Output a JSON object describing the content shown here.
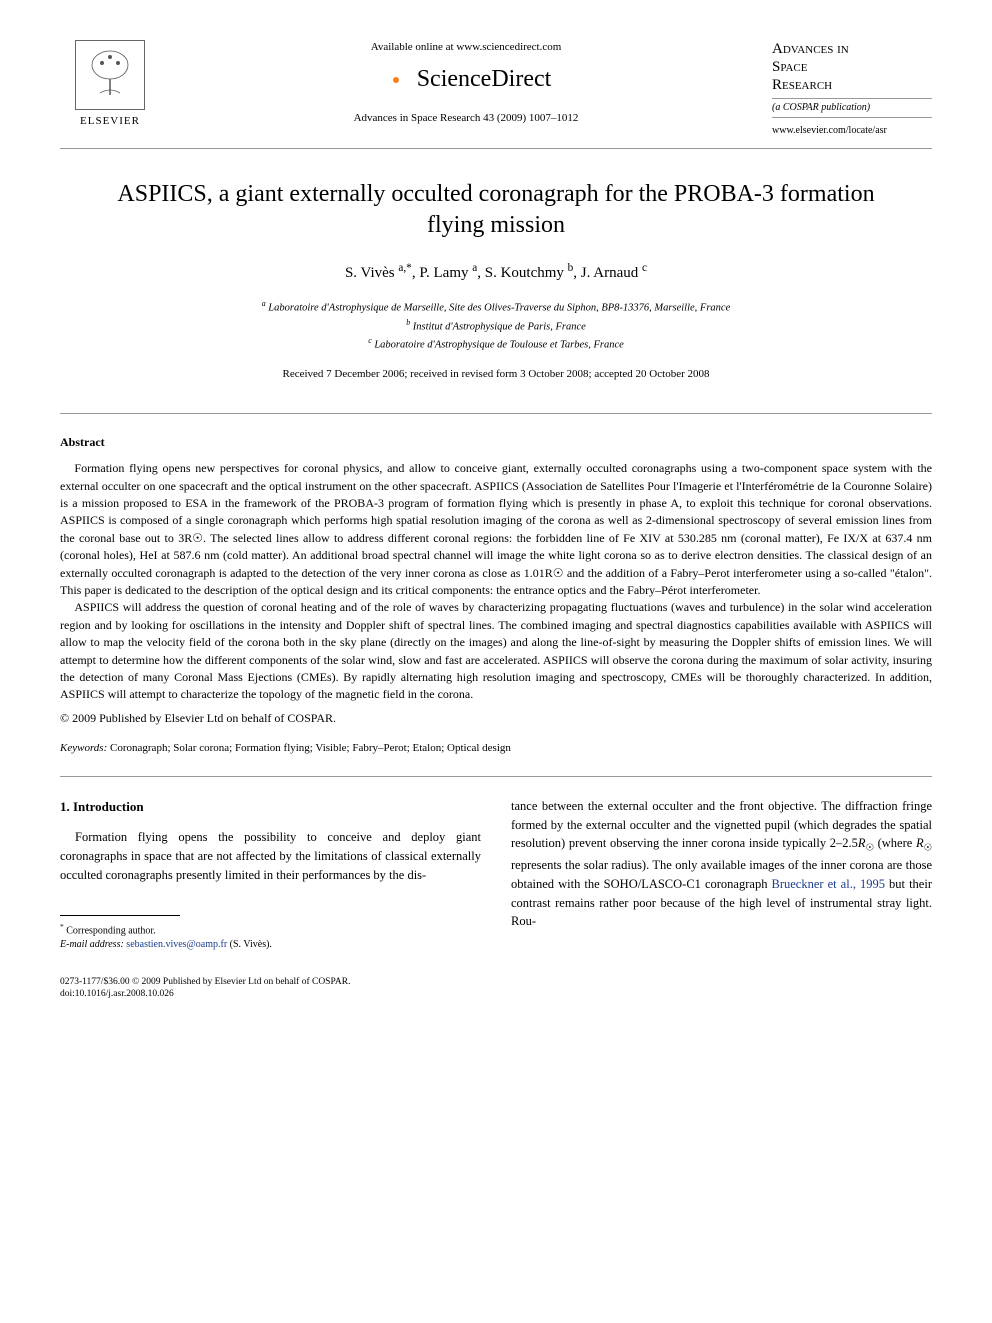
{
  "header": {
    "elsevier_label": "ELSEVIER",
    "available_text": "Available online at www.sciencedirect.com",
    "sciencedirect_label": "ScienceDirect",
    "journal_ref": "Advances in Space Research 43 (2009) 1007–1012",
    "journal_title_l1": "Advances in",
    "journal_title_l2": "Space",
    "journal_title_l3": "Research",
    "journal_sub": "(a COSPAR publication)",
    "journal_url": "www.elsevier.com/locate/asr",
    "sd_colors": [
      "#f58220",
      "#7cb342",
      "#29b6f6",
      "#ffca28"
    ]
  },
  "title": "ASPIICS, a giant externally occulted coronagraph for the PROBA-3 formation flying mission",
  "authors_html": "S. Vivès <span class='sup'>a,*</span>, P. Lamy <span class='sup'>a</span>, S. Koutchmy <span class='sup'>b</span>, J. Arnaud <span class='sup'>c</span>",
  "affiliations": {
    "a": "Laboratoire d'Astrophysique de Marseille, Site des Olives-Traverse du Siphon, BP8-13376, Marseille, France",
    "b": "Institut d'Astrophysique de Paris, France",
    "c": "Laboratoire d'Astrophysique de Toulouse et Tarbes, France"
  },
  "dates": "Received 7 December 2006; received in revised form 3 October 2008; accepted 20 October 2008",
  "abstract_label": "Abstract",
  "abstract": {
    "p1": "Formation flying opens new perspectives for coronal physics, and allow to conceive giant, externally occulted coronagraphs using a two-component space system with the external occulter on one spacecraft and the optical instrument on the other spacecraft. ASPIICS (Association de Satellites Pour l'Imagerie et l'Interférométrie de la Couronne Solaire) is a mission proposed to ESA in the framework of the PROBA-3 program of formation flying which is presently in phase A, to exploit this technique for coronal observations. ASPIICS is composed of a single coronagraph which performs high spatial resolution imaging of the corona as well as 2-dimensional spectroscopy of several emission lines from the coronal base out to 3R☉. The selected lines allow to address different coronal regions: the forbidden line of Fe XIV at 530.285 nm (coronal matter), Fe IX/X at 637.4 nm (coronal holes), HeI at 587.6 nm (cold matter). An additional broad spectral channel will image the white light corona so as to derive electron densities. The classical design of an externally occulted coronagraph is adapted to the detection of the very inner corona as close as 1.01R☉ and the addition of a Fabry–Perot interferometer using a so-called \"étalon\". This paper is dedicated to the description of the optical design and its critical components: the entrance optics and the Fabry–Pérot interferometer.",
    "p2": "ASPIICS will address the question of coronal heating and of the role of waves by characterizing propagating fluctuations (waves and turbulence) in the solar wind acceleration region and by looking for oscillations in the intensity and Doppler shift of spectral lines. The combined imaging and spectral diagnostics capabilities available with ASPIICS will allow to map the velocity field of the corona both in the sky plane (directly on the images) and along the line-of-sight by measuring the Doppler shifts of emission lines. We will attempt to determine how the different components of the solar wind, slow and fast are accelerated. ASPIICS will observe the corona during the maximum of solar activity, insuring the detection of many Coronal Mass Ejections (CMEs). By rapidly alternating high resolution imaging and spectroscopy, CMEs will be thoroughly characterized. In addition, ASPIICS will attempt to characterize the topology of the magnetic field in the corona."
  },
  "copyright": "© 2009 Published by Elsevier Ltd on behalf of COSPAR.",
  "keywords_label": "Keywords:",
  "keywords": "Coronagraph; Solar corona; Formation flying; Visible; Fabry–Perot; Etalon; Optical design",
  "section1": {
    "heading": "1. Introduction",
    "col1": "Formation flying opens the possibility to conceive and deploy giant coronagraphs in space that are not affected by the limitations of classical externally occulted coronagraphs presently limited in their performances by the dis-",
    "col2_a": "tance between the external occulter and the front objective. The diffraction fringe formed by the external occulter and the vignetted pupil (which degrades the spatial resolution) prevent observing the inner corona inside typically 2–2.5",
    "col2_b": " (where ",
    "col2_c": " represents the solar radius). The only available images of the inner corona are those obtained with the SOHO/LASCO-C1 coronagraph ",
    "col2_link": "Brueckner et al., 1995",
    "col2_d": " but their contrast remains rather poor because of the high level of instrumental stray light. Rou-"
  },
  "footnote": {
    "corr": "Corresponding author.",
    "email_label": "E-mail address:",
    "email": "sebastien.vives@oamp.fr",
    "email_who": "(S. Vivès)."
  },
  "bottom": {
    "line1": "0273-1177/$36.00 © 2009 Published by Elsevier Ltd on behalf of COSPAR.",
    "line2": "doi:10.1016/j.asr.2008.10.026"
  }
}
